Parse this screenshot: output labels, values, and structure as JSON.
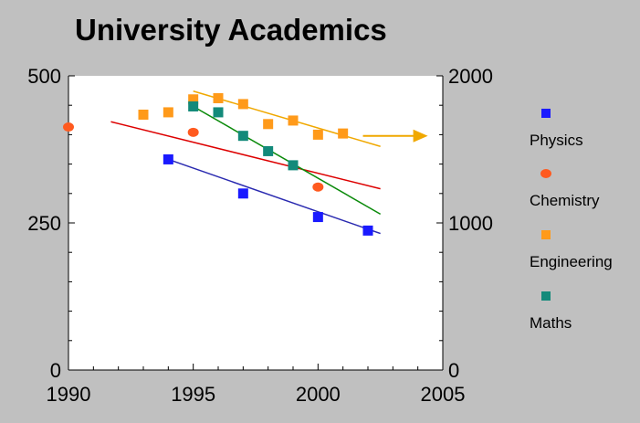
{
  "chart_data": {
    "type": "scatter",
    "title": "University Academics",
    "xlabel": "",
    "ylabel": "",
    "xlim": [
      1990,
      2005
    ],
    "ylim": [
      0,
      500
    ],
    "y2lim": [
      0,
      2000
    ],
    "x_ticks": [
      "1990",
      "1995",
      "2000",
      "2005"
    ],
    "y_ticks": [
      "0",
      "250",
      "500"
    ],
    "y2_ticks": [
      "0",
      "1000",
      "2000"
    ],
    "grid": false,
    "legend_position": "right",
    "series": [
      {
        "name": "Physics",
        "color": "#1a1aff",
        "marker": "square",
        "axis": "left",
        "x": [
          1994,
          1997,
          2000,
          2002
        ],
        "y": [
          358,
          300,
          260,
          237
        ],
        "trend": {
          "color": "#2a2ab0",
          "x": [
            1994,
            2002.5
          ],
          "y": [
            358,
            232
          ]
        }
      },
      {
        "name": "Chemistry",
        "color": "#ff5a1f",
        "marker": "circle",
        "axis": "left",
        "x": [
          1990,
          1995,
          2000
        ],
        "y": [
          413,
          404,
          311
        ],
        "trend": {
          "color": "#dd0000",
          "x": [
            1991.7,
            2002.5
          ],
          "y": [
            422,
            308
          ]
        }
      },
      {
        "name": "Engineering",
        "color": "#ff9a1a",
        "marker": "square",
        "axis": "right",
        "x": [
          1993,
          1994,
          1995,
          1996,
          1997,
          1998,
          1999,
          2000,
          2001
        ],
        "y": [
          1736,
          1752,
          1840,
          1848,
          1808,
          1672,
          1696,
          1600,
          1608
        ],
        "trend": {
          "color": "#f0a800",
          "x": [
            1995,
            2002.5
          ],
          "y": [
            1896,
            1520
          ]
        },
        "arrow": {
          "from": [
            2001.8,
            1592
          ],
          "to": [
            2004.4,
            1592
          ]
        }
      },
      {
        "name": "Maths",
        "color": "#138a7a",
        "marker": "square",
        "axis": "left",
        "x": [
          1995,
          1996,
          1997,
          1998,
          1999
        ],
        "y": [
          448,
          438,
          398,
          372,
          348
        ],
        "trend": {
          "color": "#0a8a0a",
          "x": [
            1995,
            2002.5
          ],
          "y": [
            448,
            265
          ]
        }
      }
    ]
  }
}
